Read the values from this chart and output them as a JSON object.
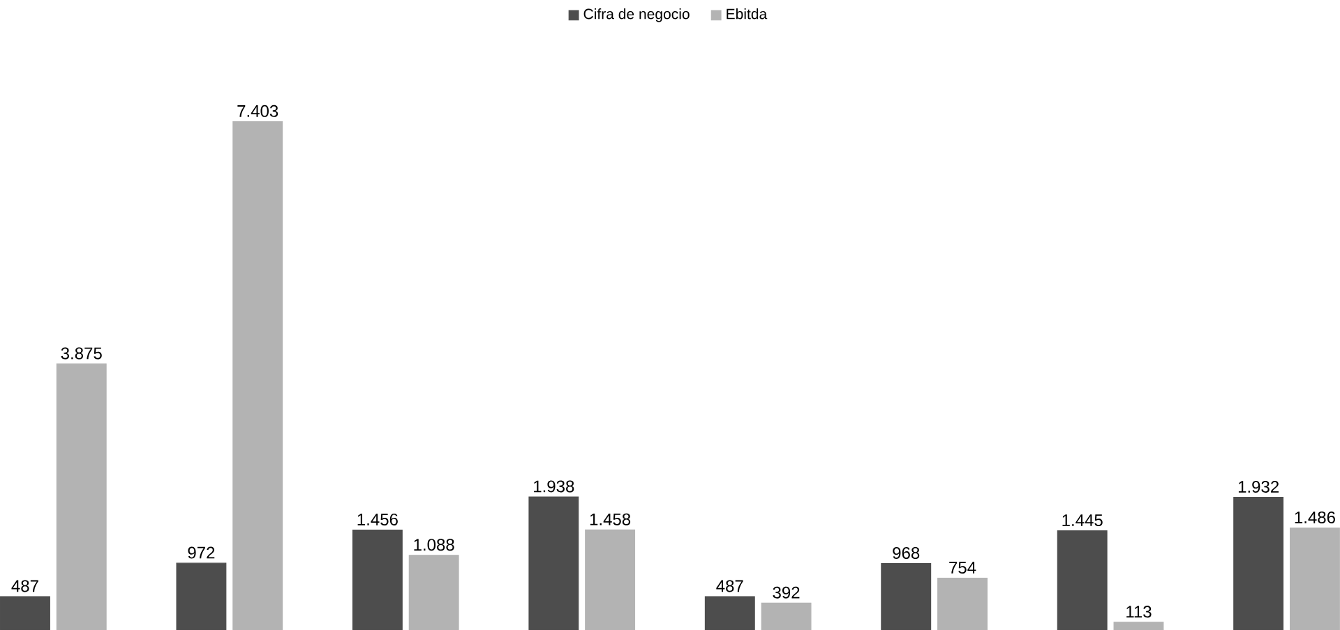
{
  "chart_data": {
    "type": "bar",
    "categories": [
      null,
      null,
      null,
      null,
      null,
      null,
      null,
      null
    ],
    "series": [
      {
        "name": "Cifra de negocio",
        "color": "#4d4d4d",
        "values": [
          487,
          972,
          1456,
          1938,
          487,
          968,
          1445,
          1932
        ],
        "value_labels": [
          "487",
          "972",
          "1.456",
          "1.938",
          "487",
          "968",
          "1.445",
          "1.932"
        ]
      },
      {
        "name": "Ebitda",
        "color": "#b3b3b3",
        "values": [
          3875,
          7403,
          1088,
          1458,
          392,
          754,
          113,
          1486
        ],
        "value_labels": [
          "3.875",
          "7.403",
          "1.088",
          "1.458",
          "392",
          "754",
          "113",
          "1.486"
        ]
      }
    ],
    "legend": "top"
  }
}
